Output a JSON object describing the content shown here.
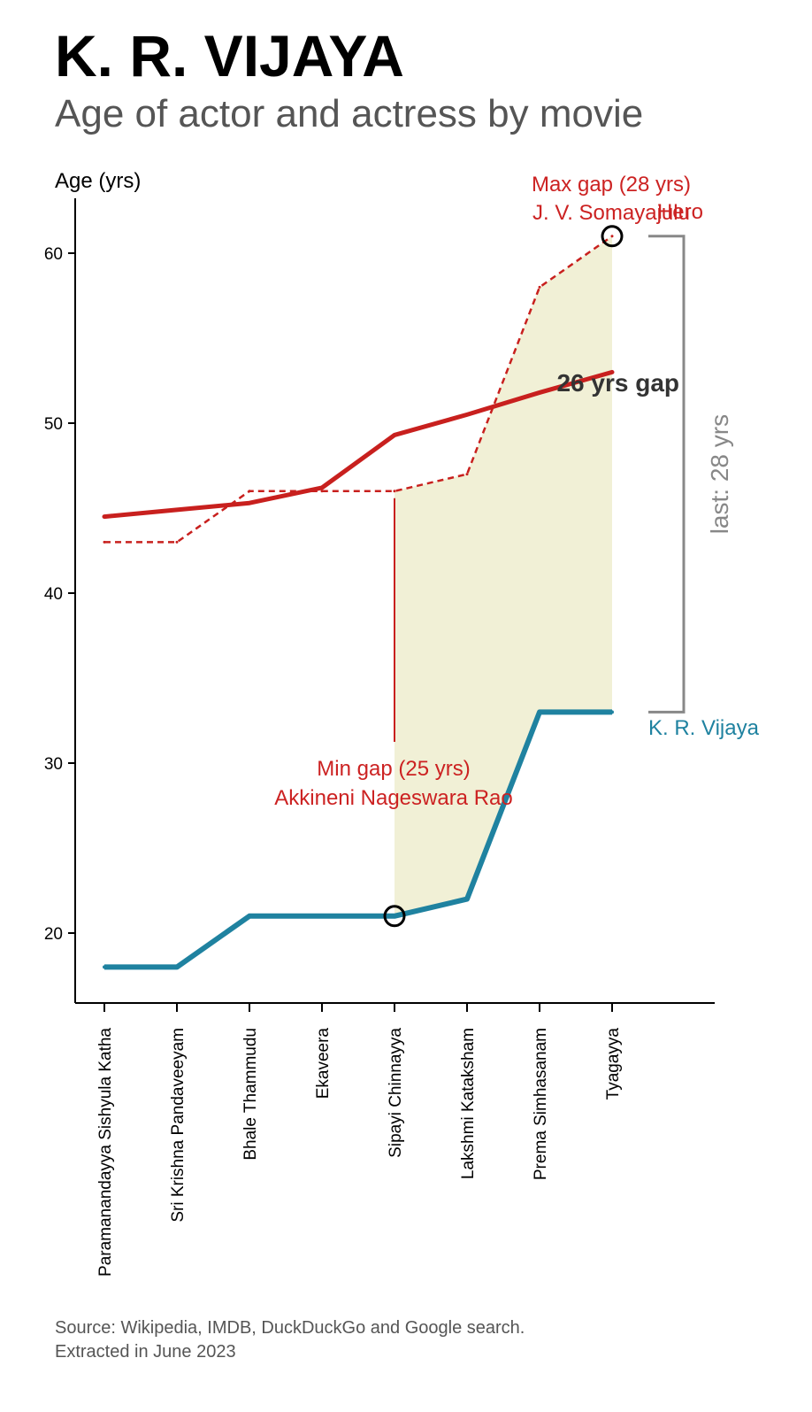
{
  "header": {
    "title": "K. R. VIJAYA",
    "subtitle": "Age of actor and actress by movie"
  },
  "footer": {
    "source_line1": "Source: Wikipedia, IMDB, DuckDuckGo and Google search.",
    "source_line2": "Extracted in June 2023"
  },
  "colors": {
    "actor": "#c8201e",
    "actress": "#1f82a0",
    "gap_fill": "#f1f0d6",
    "bracket": "#888888",
    "marker": "#000000"
  },
  "chart_data": {
    "type": "line",
    "ylabel": "Age (yrs)",
    "xlabel": "",
    "categories": [
      "Paramanandayya Sishyula Katha",
      "Sri Krishna Pandaveeyam",
      "Bhale Thammudu",
      "Ekaveera",
      "Sipayi Chinnayya",
      "Lakshmi Kataksham",
      "Prema Simhasanam",
      "Tyagayya"
    ],
    "ylim": [
      16,
      63
    ],
    "yticks": [
      20,
      30,
      40,
      50,
      60
    ],
    "grid": false,
    "series": [
      {
        "name": "Hero",
        "style": "dashed",
        "values": [
          43,
          43,
          46,
          46,
          46,
          47,
          58,
          61
        ]
      },
      {
        "name": "K. R. Vijaya",
        "style": "solid",
        "values": [
          18,
          18,
          21,
          21,
          21,
          22,
          33,
          33
        ]
      }
    ],
    "trend": {
      "style": "solid",
      "values": [
        44.5,
        44.9,
        45.3,
        46.2,
        49.3,
        50.5,
        51.8,
        53.0
      ]
    },
    "annotations": {
      "max_gap": {
        "index": 7,
        "line1": "Max gap (28 yrs)",
        "line2": "J. V. Somayajulu"
      },
      "min_gap": {
        "index": 4,
        "line1": "Min gap (25 yrs)",
        "line2": "Akkineni Nageswara Rao"
      },
      "trend_gap_label": "26 yrs gap",
      "last_gap_label": "last: 28 yrs"
    }
  }
}
